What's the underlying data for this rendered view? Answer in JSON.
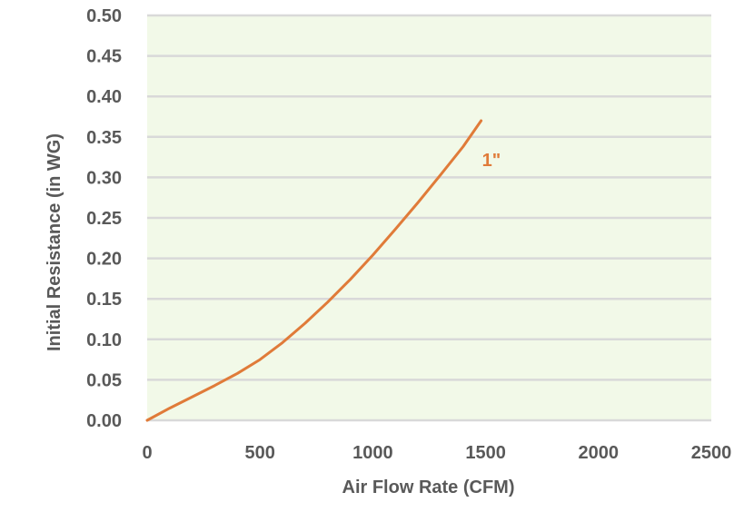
{
  "chart_data": {
    "type": "line",
    "xlabel": "Air Flow Rate (CFM)",
    "ylabel": "Initial Resistance (in WG)",
    "xlim": [
      0,
      2500
    ],
    "ylim": [
      0,
      0.5
    ],
    "x_ticks": [
      "0",
      "500",
      "1000",
      "1500",
      "2000",
      "2500"
    ],
    "y_ticks": [
      "0.00",
      "0.05",
      "0.10",
      "0.15",
      "0.20",
      "0.25",
      "0.30",
      "0.35",
      "0.40",
      "0.45",
      "0.50"
    ],
    "grid": "horizontal",
    "plot_background": "#f2f9e8",
    "gridline_color": "#d9d9d9",
    "series": [
      {
        "name": "1\"",
        "color": "#e07b39",
        "x": [
          0,
          100,
          200,
          300,
          400,
          500,
          600,
          700,
          800,
          900,
          1000,
          1100,
          1200,
          1300,
          1400,
          1480
        ],
        "y": [
          0.0,
          0.015,
          0.029,
          0.043,
          0.058,
          0.075,
          0.096,
          0.12,
          0.146,
          0.174,
          0.204,
          0.236,
          0.269,
          0.303,
          0.338,
          0.37
        ]
      }
    ]
  }
}
